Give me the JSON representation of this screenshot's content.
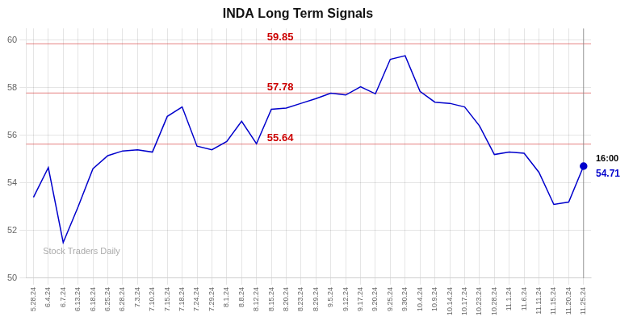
{
  "chart_data": {
    "type": "line",
    "title": "INDA Long Term Signals",
    "categories": [
      "5.28.24",
      "6.4.24",
      "6.7.24",
      "6.13.24",
      "6.18.24",
      "6.25.24",
      "6.28.24",
      "7.3.24",
      "7.10.24",
      "7.15.24",
      "7.18.24",
      "7.24.24",
      "7.29.24",
      "8.1.24",
      "8.8.24",
      "8.12.24",
      "8.15.24",
      "8.20.24",
      "8.23.24",
      "8.29.24",
      "9.5.24",
      "9.12.24",
      "9.17.24",
      "9.20.24",
      "9.25.24",
      "9.30.24",
      "10.4.24",
      "10.9.24",
      "10.14.24",
      "10.17.24",
      "10.23.24",
      "10.28.24",
      "11.1.24",
      "11.6.24",
      "11.11.24",
      "11.15.24",
      "11.20.24",
      "11.25.24"
    ],
    "values": [
      53.4,
      54.65,
      51.5,
      53.0,
      54.6,
      55.15,
      55.35,
      55.4,
      55.3,
      56.8,
      57.2,
      55.55,
      55.4,
      55.75,
      56.6,
      55.65,
      57.1,
      57.15,
      57.35,
      57.55,
      57.78,
      57.7,
      58.05,
      57.75,
      59.2,
      59.35,
      57.85,
      57.4,
      57.35,
      57.2,
      56.4,
      55.2,
      55.3,
      55.25,
      54.45,
      53.1,
      53.2,
      54.71
    ],
    "color": "#0000cc",
    "ylim": [
      50,
      60.5
    ],
    "yticks": [
      50,
      52,
      54,
      56,
      58,
      60
    ],
    "grid": true,
    "annotations": [
      {
        "type": "hline",
        "y": 59.85,
        "text": "59.85",
        "color": "#cc0000"
      },
      {
        "type": "hline",
        "y": 57.78,
        "text": "57.78",
        "color": "#cc0000"
      },
      {
        "type": "hline",
        "y": 55.64,
        "text": "55.64",
        "color": "#cc0000"
      },
      {
        "type": "last_time",
        "y": 54.71,
        "text": "16:00",
        "color": "#000000"
      },
      {
        "type": "last_price",
        "y": 54.71,
        "text": "54.71",
        "color": "#0000cc"
      },
      {
        "type": "watermark",
        "text": "Stock Traders Daily",
        "color": "#aaaaaa"
      }
    ]
  }
}
